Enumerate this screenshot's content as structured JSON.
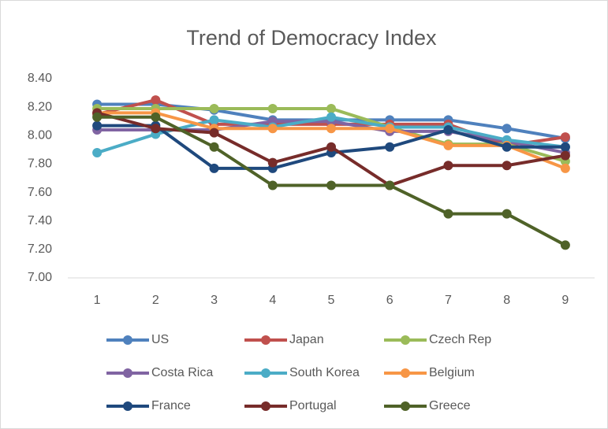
{
  "chart_data": {
    "type": "line",
    "title": "Trend of Democracy Index",
    "categories": [
      "1",
      "2",
      "3",
      "4",
      "5",
      "6",
      "7",
      "8",
      "9"
    ],
    "series": [
      {
        "name": "US",
        "color": "#4f81bd",
        "values": [
          8.22,
          8.22,
          8.18,
          8.11,
          8.11,
          8.11,
          8.11,
          8.05,
          7.98
        ]
      },
      {
        "name": "Japan",
        "color": "#c0504d",
        "values": [
          8.15,
          8.25,
          8.08,
          8.08,
          8.08,
          8.08,
          8.08,
          7.93,
          7.99
        ]
      },
      {
        "name": "Czech Rep",
        "color": "#9bbb59",
        "values": [
          8.19,
          8.19,
          8.19,
          8.19,
          8.19,
          8.06,
          7.94,
          7.94,
          7.82
        ]
      },
      {
        "name": "Costa Rica",
        "color": "#8064a2",
        "values": [
          8.04,
          8.04,
          8.04,
          8.1,
          8.1,
          8.03,
          8.03,
          7.96,
          7.88
        ]
      },
      {
        "name": "South Korea",
        "color": "#4bacc6",
        "values": [
          7.88,
          8.01,
          8.11,
          8.06,
          8.13,
          8.06,
          8.06,
          7.97,
          7.92
        ]
      },
      {
        "name": "Belgium",
        "color": "#f79646",
        "values": [
          8.16,
          8.16,
          8.05,
          8.05,
          8.05,
          8.05,
          7.93,
          7.93,
          7.77
        ]
      },
      {
        "name": "France",
        "color": "#1f497d",
        "values": [
          8.07,
          8.07,
          7.77,
          7.77,
          7.88,
          7.92,
          8.04,
          7.92,
          7.92
        ]
      },
      {
        "name": "Portugal",
        "color": "#772c2a",
        "values": [
          8.16,
          8.05,
          8.02,
          7.81,
          7.92,
          7.65,
          7.79,
          7.79,
          7.86
        ]
      },
      {
        "name": "Greece",
        "color": "#4f6228",
        "values": [
          8.13,
          8.13,
          7.92,
          7.65,
          7.65,
          7.65,
          7.45,
          7.45,
          7.23
        ]
      }
    ],
    "ylim": [
      7.0,
      8.4
    ],
    "yticks": [
      {
        "value": 7.0,
        "label": "7.00"
      },
      {
        "value": 7.2,
        "label": "7.20"
      },
      {
        "value": 7.4,
        "label": "7.40"
      },
      {
        "value": 7.6,
        "label": "7.60"
      },
      {
        "value": 7.8,
        "label": "7.80"
      },
      {
        "value": 8.0,
        "label": "8.00"
      },
      {
        "value": 8.2,
        "label": "8.20"
      },
      {
        "value": 8.4,
        "label": "8.40"
      }
    ],
    "grid": false,
    "legend": "bottom"
  }
}
